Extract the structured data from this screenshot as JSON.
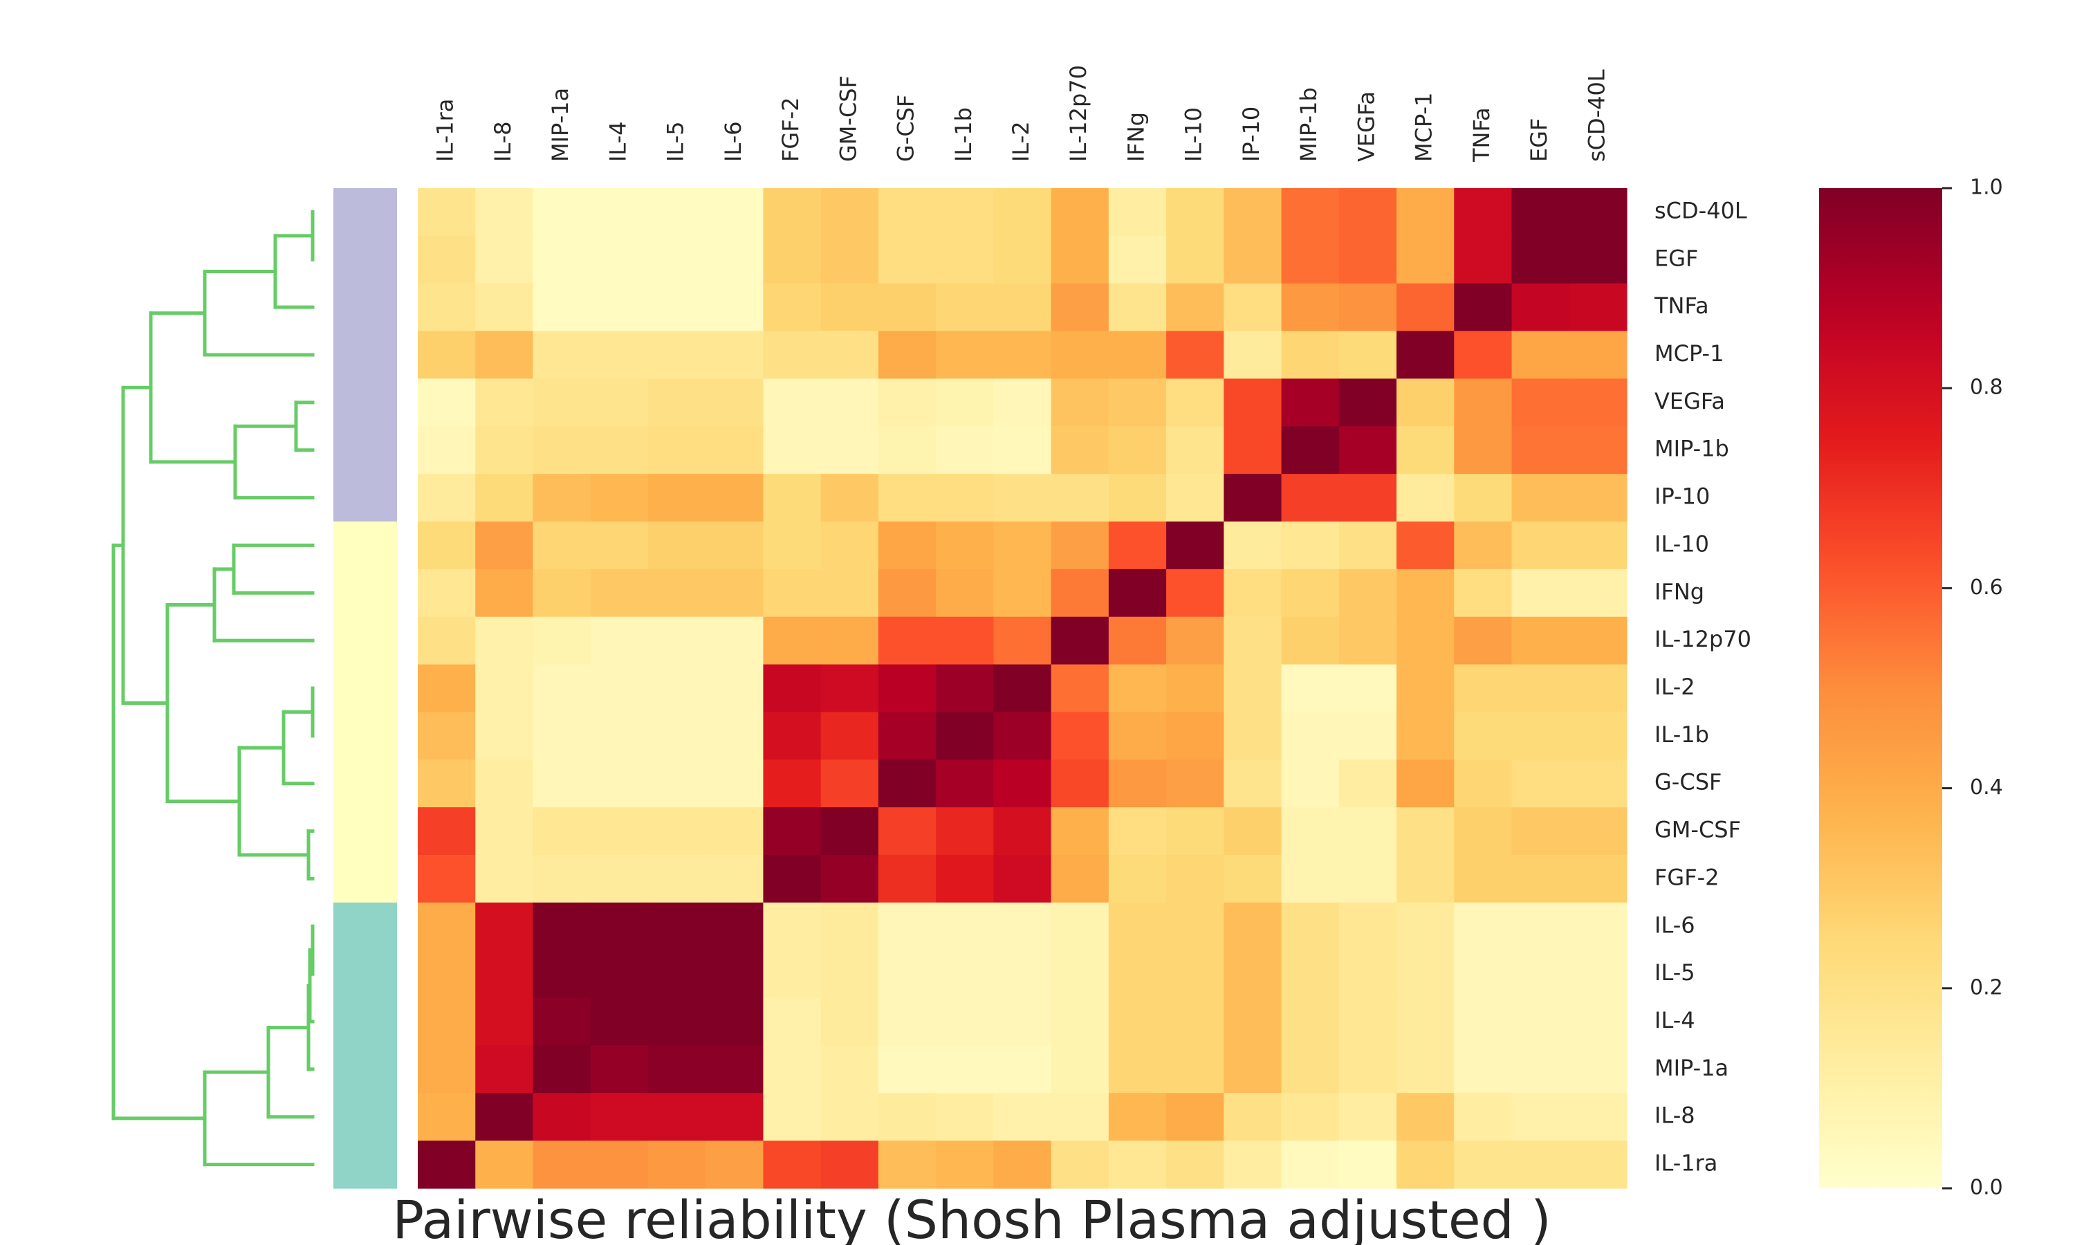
{
  "chart_data": {
    "type": "heatmap",
    "title": "Pairwise reliability (Shosh Plasma adjusted )",
    "columns": [
      "IL-1ra",
      "IL-8",
      "MIP-1a",
      "IL-4",
      "IL-5",
      "IL-6",
      "FGF-2",
      "GM-CSF",
      "G-CSF",
      "IL-1b",
      "IL-2",
      "IL-12p70",
      "IFNg",
      "IL-10",
      "IP-10",
      "MIP-1b",
      "VEGFa",
      "MCP-1",
      "TNFa",
      "EGF",
      "sCD-40L"
    ],
    "rows": [
      "sCD-40L",
      "EGF",
      "TNFa",
      "MCP-1",
      "VEGFa",
      "MIP-1b",
      "IP-10",
      "IL-10",
      "IFNg",
      "IL-12p70",
      "IL-2",
      "IL-1b",
      "G-CSF",
      "GM-CSF",
      "FGF-2",
      "IL-6",
      "IL-5",
      "IL-4",
      "MIP-1a",
      "IL-8",
      "IL-1ra"
    ],
    "values": [
      [
        0.18,
        0.1,
        0.03,
        0.03,
        0.03,
        0.03,
        0.28,
        0.3,
        0.22,
        0.22,
        0.24,
        0.38,
        0.12,
        0.24,
        0.34,
        0.56,
        0.58,
        0.4,
        0.82,
        1.0,
        1.0
      ],
      [
        0.2,
        0.1,
        0.03,
        0.03,
        0.03,
        0.03,
        0.28,
        0.3,
        0.22,
        0.22,
        0.24,
        0.38,
        0.1,
        0.24,
        0.34,
        0.56,
        0.58,
        0.4,
        0.82,
        1.0,
        1.0
      ],
      [
        0.18,
        0.14,
        0.03,
        0.03,
        0.03,
        0.03,
        0.26,
        0.28,
        0.28,
        0.26,
        0.26,
        0.44,
        0.18,
        0.34,
        0.22,
        0.46,
        0.48,
        0.58,
        1.0,
        0.85,
        0.84
      ],
      [
        0.28,
        0.34,
        0.16,
        0.16,
        0.16,
        0.16,
        0.2,
        0.2,
        0.4,
        0.36,
        0.36,
        0.38,
        0.38,
        0.6,
        0.14,
        0.26,
        0.24,
        1.0,
        0.62,
        0.42,
        0.42
      ],
      [
        0.04,
        0.16,
        0.18,
        0.18,
        0.2,
        0.2,
        0.06,
        0.06,
        0.1,
        0.08,
        0.06,
        0.32,
        0.3,
        0.22,
        0.64,
        0.92,
        1.0,
        0.28,
        0.46,
        0.56,
        0.56
      ],
      [
        0.06,
        0.18,
        0.2,
        0.2,
        0.22,
        0.22,
        0.06,
        0.06,
        0.08,
        0.06,
        0.05,
        0.3,
        0.28,
        0.18,
        0.64,
        1.0,
        0.92,
        0.24,
        0.46,
        0.55,
        0.55
      ],
      [
        0.14,
        0.24,
        0.34,
        0.36,
        0.38,
        0.38,
        0.24,
        0.3,
        0.22,
        0.22,
        0.2,
        0.2,
        0.24,
        0.16,
        1.0,
        0.66,
        0.66,
        0.14,
        0.24,
        0.34,
        0.34
      ],
      [
        0.24,
        0.44,
        0.26,
        0.26,
        0.28,
        0.28,
        0.24,
        0.26,
        0.42,
        0.38,
        0.36,
        0.44,
        0.62,
        1.0,
        0.14,
        0.16,
        0.2,
        0.6,
        0.34,
        0.26,
        0.26
      ],
      [
        0.16,
        0.4,
        0.28,
        0.3,
        0.3,
        0.3,
        0.26,
        0.26,
        0.46,
        0.4,
        0.36,
        0.54,
        1.0,
        0.62,
        0.22,
        0.26,
        0.3,
        0.36,
        0.22,
        0.1,
        0.1
      ],
      [
        0.2,
        0.1,
        0.08,
        0.06,
        0.06,
        0.06,
        0.4,
        0.4,
        0.62,
        0.62,
        0.56,
        1.0,
        0.54,
        0.44,
        0.2,
        0.28,
        0.3,
        0.36,
        0.44,
        0.38,
        0.38
      ],
      [
        0.38,
        0.1,
        0.06,
        0.06,
        0.06,
        0.06,
        0.84,
        0.82,
        0.88,
        0.94,
        1.0,
        0.56,
        0.36,
        0.38,
        0.2,
        0.04,
        0.04,
        0.36,
        0.26,
        0.26,
        0.26
      ],
      [
        0.34,
        0.1,
        0.06,
        0.06,
        0.06,
        0.06,
        0.8,
        0.72,
        0.92,
        1.0,
        0.94,
        0.62,
        0.4,
        0.42,
        0.2,
        0.06,
        0.06,
        0.36,
        0.24,
        0.24,
        0.24
      ],
      [
        0.3,
        0.12,
        0.06,
        0.06,
        0.06,
        0.06,
        0.74,
        0.66,
        1.0,
        0.92,
        0.88,
        0.64,
        0.46,
        0.44,
        0.18,
        0.06,
        0.12,
        0.42,
        0.26,
        0.22,
        0.22
      ],
      [
        0.66,
        0.12,
        0.16,
        0.16,
        0.16,
        0.16,
        0.96,
        1.0,
        0.66,
        0.72,
        0.8,
        0.38,
        0.22,
        0.24,
        0.28,
        0.08,
        0.08,
        0.2,
        0.28,
        0.3,
        0.3
      ],
      [
        0.62,
        0.12,
        0.14,
        0.14,
        0.14,
        0.14,
        1.0,
        0.96,
        0.7,
        0.76,
        0.82,
        0.4,
        0.24,
        0.26,
        0.24,
        0.08,
        0.08,
        0.2,
        0.28,
        0.28,
        0.28
      ],
      [
        0.4,
        0.8,
        1.0,
        1.0,
        1.0,
        1.0,
        0.12,
        0.14,
        0.06,
        0.06,
        0.06,
        0.08,
        0.26,
        0.26,
        0.34,
        0.2,
        0.16,
        0.14,
        0.06,
        0.06,
        0.06
      ],
      [
        0.4,
        0.8,
        1.0,
        1.0,
        1.0,
        1.0,
        0.12,
        0.14,
        0.06,
        0.06,
        0.06,
        0.08,
        0.26,
        0.26,
        0.34,
        0.2,
        0.16,
        0.14,
        0.06,
        0.06,
        0.06
      ],
      [
        0.4,
        0.8,
        0.98,
        1.0,
        1.0,
        1.0,
        0.1,
        0.14,
        0.06,
        0.06,
        0.06,
        0.08,
        0.26,
        0.26,
        0.34,
        0.2,
        0.16,
        0.14,
        0.06,
        0.06,
        0.06
      ],
      [
        0.4,
        0.82,
        1.0,
        0.96,
        0.98,
        0.98,
        0.1,
        0.12,
        0.04,
        0.04,
        0.04,
        0.08,
        0.26,
        0.26,
        0.34,
        0.2,
        0.16,
        0.14,
        0.06,
        0.06,
        0.06
      ],
      [
        0.38,
        1.0,
        0.84,
        0.82,
        0.82,
        0.82,
        0.1,
        0.12,
        0.14,
        0.12,
        0.1,
        0.1,
        0.36,
        0.4,
        0.2,
        0.16,
        0.12,
        0.3,
        0.12,
        0.1,
        0.1
      ],
      [
        1.0,
        0.38,
        0.48,
        0.48,
        0.46,
        0.44,
        0.64,
        0.66,
        0.34,
        0.36,
        0.4,
        0.2,
        0.16,
        0.2,
        0.12,
        0.04,
        0.03,
        0.26,
        0.18,
        0.18,
        0.18
      ]
    ],
    "cluster_colors": [
      "#bcbbdb",
      "#ffffbf",
      "#8fd4c6"
    ],
    "row_cluster": [
      0,
      0,
      0,
      0,
      0,
      0,
      0,
      1,
      1,
      1,
      1,
      1,
      1,
      1,
      1,
      2,
      2,
      2,
      2,
      2,
      2
    ],
    "dendrogram_color": "#66cc66",
    "colorbar": {
      "min": 0.0,
      "max": 1.0,
      "ticks": [
        "0.0",
        "0.2",
        "0.4",
        "0.6",
        "0.8",
        "1.0"
      ],
      "colormap": "YlOrRd"
    },
    "grid": false
  }
}
